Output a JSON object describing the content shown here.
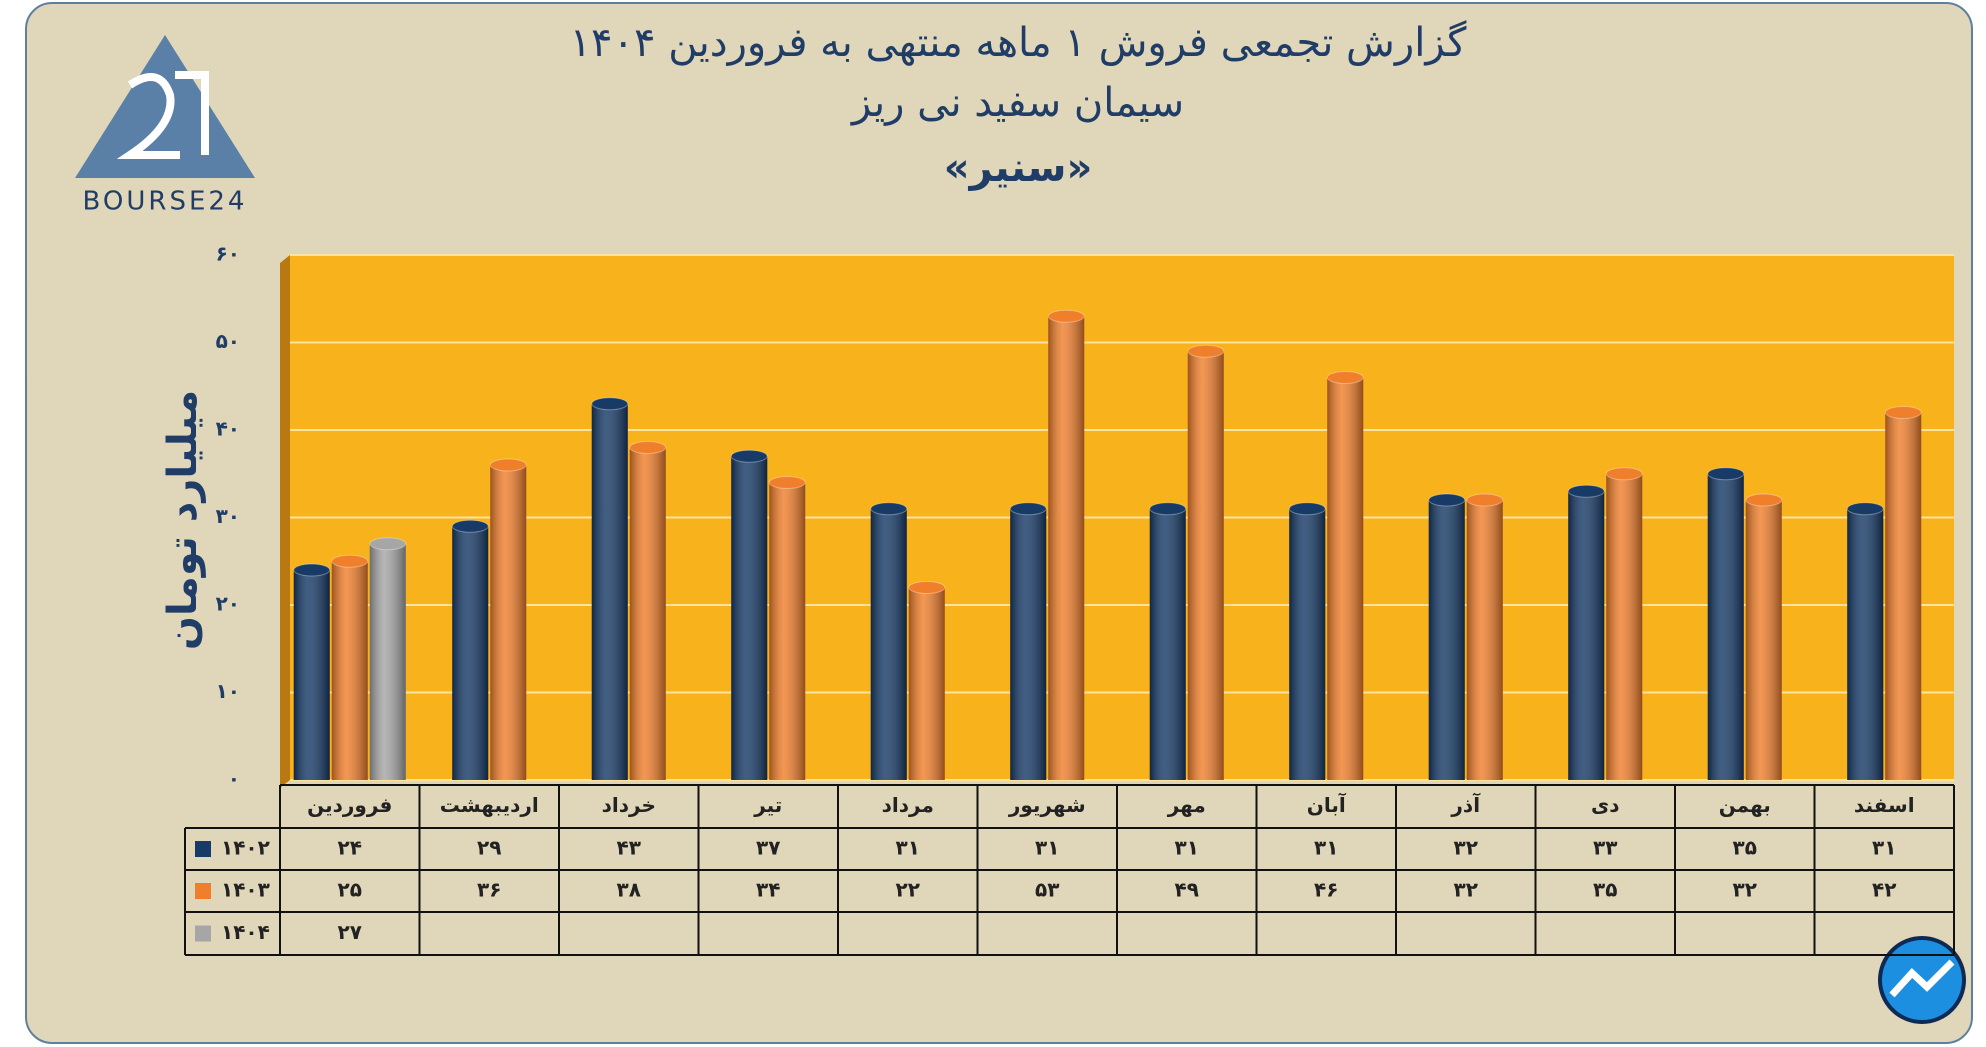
{
  "logo": "BOURSE24",
  "chart_data": {
    "type": "bar",
    "title": "گزارش تجمعی فروش ۱ ماهه منتهی به فروردین ۱۴۰۴",
    "subtitle": "سیمان سفید نی ریز",
    "annotation": "«سنیر»",
    "ylabel": "میلیارد تومان",
    "categories": [
      "فروردین",
      "اردیبهشت",
      "خرداد",
      "تیر",
      "مرداد",
      "شهریور",
      "مهر",
      "آبان",
      "آذر",
      "دی",
      "بهمن",
      "اسفند"
    ],
    "series": [
      {
        "name": "۱۴۰۲",
        "color": "#173a67",
        "values": [
          24,
          29,
          43,
          37,
          31,
          31,
          31,
          31,
          32,
          33,
          35,
          31
        ],
        "value_labels": [
          "۲۴",
          "۲۹",
          "۴۳",
          "۳۷",
          "۳۱",
          "۳۱",
          "۳۱",
          "۳۱",
          "۳۲",
          "۳۳",
          "۳۵",
          "۳۱"
        ]
      },
      {
        "name": "۱۴۰۳",
        "color": "#f07f2c",
        "values": [
          25,
          36,
          38,
          34,
          22,
          53,
          49,
          46,
          32,
          35,
          32,
          42
        ],
        "value_labels": [
          "۲۵",
          "۳۶",
          "۳۸",
          "۳۴",
          "۲۲",
          "۵۳",
          "۴۹",
          "۴۶",
          "۳۲",
          "۳۵",
          "۳۲",
          "۴۲"
        ]
      },
      {
        "name": "۱۴۰۴",
        "color": "#a6a6a6",
        "values": [
          27,
          null,
          null,
          null,
          null,
          null,
          null,
          null,
          null,
          null,
          null,
          null
        ],
        "value_labels": [
          "۲۷",
          null,
          null,
          null,
          null,
          null,
          null,
          null,
          null,
          null,
          null,
          null
        ]
      }
    ],
    "ylim": [
      0,
      60
    ],
    "yticks": [
      {
        "value": 0,
        "label": "۰"
      },
      {
        "value": 10,
        "label": "۱۰"
      },
      {
        "value": 20,
        "label": "۲۰"
      },
      {
        "value": 30,
        "label": "۳۰"
      },
      {
        "value": 40,
        "label": "۴۰"
      },
      {
        "value": 50,
        "label": "۵۰"
      },
      {
        "value": 60,
        "label": "۶۰"
      }
    ],
    "grid": true,
    "plot_color": "#f8b21c"
  }
}
